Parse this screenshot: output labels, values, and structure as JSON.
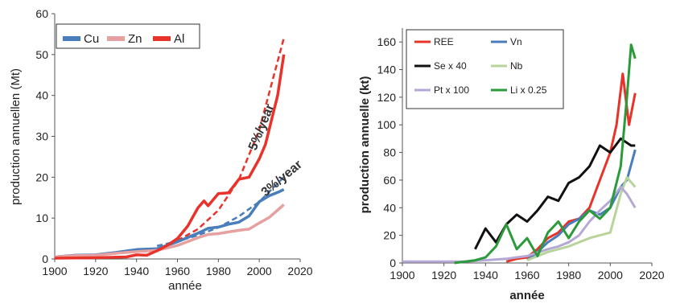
{
  "charts": [
    {
      "id": "left",
      "chart_data": {
        "type": "line",
        "xlabel": "année",
        "ylabel": "production annuellen (Mt)",
        "xlim": [
          1900,
          2020
        ],
        "ylim": [
          0,
          60
        ],
        "xticks": [
          1900,
          1920,
          1940,
          1960,
          1980,
          2000,
          2020
        ],
        "yticks": [
          0,
          10,
          20,
          30,
          40,
          50,
          60
        ],
        "legend_position": "top-left",
        "series": [
          {
            "name": "Cu",
            "color": "#4a7ebb",
            "x": [
              1900,
              1910,
              1920,
              1930,
              1940,
              1950,
              1960,
              1970,
              1975,
              1980,
              1985,
              1990,
              1995,
              2000,
              2005,
              2010,
              2012
            ],
            "y": [
              0.5,
              0.9,
              1.0,
              1.6,
              2.3,
              2.5,
              4.2,
              6.3,
              7.5,
              7.8,
              8.5,
              9.0,
              10.5,
              14.0,
              15.5,
              16.5,
              17.0
            ]
          },
          {
            "name": "Zn",
            "color": "#e6a0a0",
            "x": [
              1900,
              1910,
              1920,
              1930,
              1940,
              1950,
              1960,
              1970,
              1975,
              1980,
              1985,
              1990,
              1995,
              2000,
              2005,
              2010,
              2012
            ],
            "y": [
              0.5,
              0.8,
              0.9,
              1.4,
              1.8,
              2.1,
              3.3,
              5.2,
              6.0,
              6.2,
              6.6,
              7.0,
              7.3,
              8.8,
              10.2,
              12.4,
              13.3
            ]
          },
          {
            "name": "Al",
            "color": "#e8332a",
            "x": [
              1900,
              1920,
              1935,
              1940,
              1945,
              1950,
              1955,
              1960,
              1965,
              1970,
              1973,
              1975,
              1980,
              1985,
              1990,
              1995,
              2000,
              2003,
              2006,
              2009,
              2012
            ],
            "y": [
              0.2,
              0.3,
              0.5,
              1.0,
              0.9,
              2.0,
              3.3,
              5.0,
              8.0,
              12.5,
              14.2,
              13.0,
              16.0,
              16.2,
              19.5,
              20.0,
              24.5,
              28.0,
              34.0,
              40.0,
              50.0
            ]
          }
        ],
        "trend_lines": [
          {
            "label": "5%/year",
            "color": "#e8332a",
            "x": [
              1960,
              1970,
              1980,
              1990,
              2000,
              2012
            ],
            "y": [
              4.5,
              7.3,
              11.9,
              19.4,
              31.6,
              54.0
            ]
          },
          {
            "label": "3%/year",
            "color": "#4a7ebb",
            "x": [
              1950,
              1960,
              1970,
              1980,
              1990,
              2000,
              2012
            ],
            "y": [
              3.2,
              4.3,
              5.8,
              7.7,
              10.4,
              14.0,
              20.0
            ]
          }
        ]
      }
    },
    {
      "id": "right",
      "chart_data": {
        "type": "line",
        "xlabel": "année",
        "ylabel": "production annuelle (kt)",
        "xlim": [
          1900,
          2020
        ],
        "ylim": [
          0,
          170
        ],
        "xticks": [
          1900,
          1920,
          1940,
          1960,
          1980,
          2000,
          2020
        ],
        "yticks": [
          0,
          20,
          40,
          60,
          80,
          100,
          120,
          140,
          160
        ],
        "legend_position": "top-left",
        "series": [
          {
            "name": "REE",
            "color": "#e8332a",
            "x": [
              1950,
              1955,
              1960,
              1965,
              1970,
              1975,
              1980,
              1985,
              1990,
              1995,
              2000,
              2003,
              2006,
              2009,
              2012
            ],
            "y": [
              1,
              3,
              4,
              10,
              18,
              22,
              30,
              32,
              40,
              60,
              80,
              100,
              137,
              100,
              123
            ]
          },
          {
            "name": "Vn",
            "color": "#4a7ebb",
            "x": [
              1960,
              1965,
              1970,
              1975,
              1980,
              1985,
              1990,
              1995,
              2000,
              2005,
              2008,
              2012
            ],
            "y": [
              2,
              8,
              15,
              20,
              28,
              32,
              38,
              35,
              40,
              55,
              60,
              82
            ]
          },
          {
            "name": "Se x 40",
            "color": "#111111",
            "x": [
              1935,
              1940,
              1945,
              1950,
              1955,
              1960,
              1965,
              1970,
              1975,
              1980,
              1985,
              1990,
              1995,
              2000,
              2005,
              2010,
              2012
            ],
            "y": [
              10,
              25,
              15,
              28,
              35,
              30,
              38,
              48,
              45,
              58,
              62,
              70,
              85,
              80,
              90,
              85,
              85
            ]
          },
          {
            "name": "Nb",
            "color": "#b8d49a",
            "x": [
              1960,
              1965,
              1970,
              1975,
              1980,
              1985,
              1990,
              1995,
              2000,
              2005,
              2008,
              2012
            ],
            "y": [
              2,
              5,
              8,
              10,
              12,
              15,
              18,
              20,
              22,
              50,
              62,
              55
            ]
          },
          {
            "name": "Pt x 100",
            "color": "#b5a8d4",
            "x": [
              1900,
              1910,
              1920,
              1930,
              1940,
              1950,
              1960,
              1970,
              1975,
              1980,
              1985,
              1990,
              1995,
              2000,
              2005,
              2008,
              2012
            ],
            "y": [
              1,
              1,
              1,
              1,
              2,
              3,
              5,
              10,
              12,
              15,
              20,
              30,
              38,
              45,
              55,
              50,
              40
            ]
          },
          {
            "name": "Li x 0.25",
            "color": "#2a9a3a",
            "x": [
              1925,
              1930,
              1935,
              1940,
              1945,
              1950,
              1955,
              1960,
              1965,
              1970,
              1975,
              1980,
              1985,
              1990,
              1995,
              2000,
              2005,
              2008,
              2010,
              2012
            ],
            "y": [
              0,
              1,
              2,
              4,
              12,
              28,
              10,
              18,
              5,
              22,
              30,
              18,
              30,
              38,
              32,
              40,
              70,
              120,
              158,
              148
            ]
          }
        ]
      }
    }
  ]
}
